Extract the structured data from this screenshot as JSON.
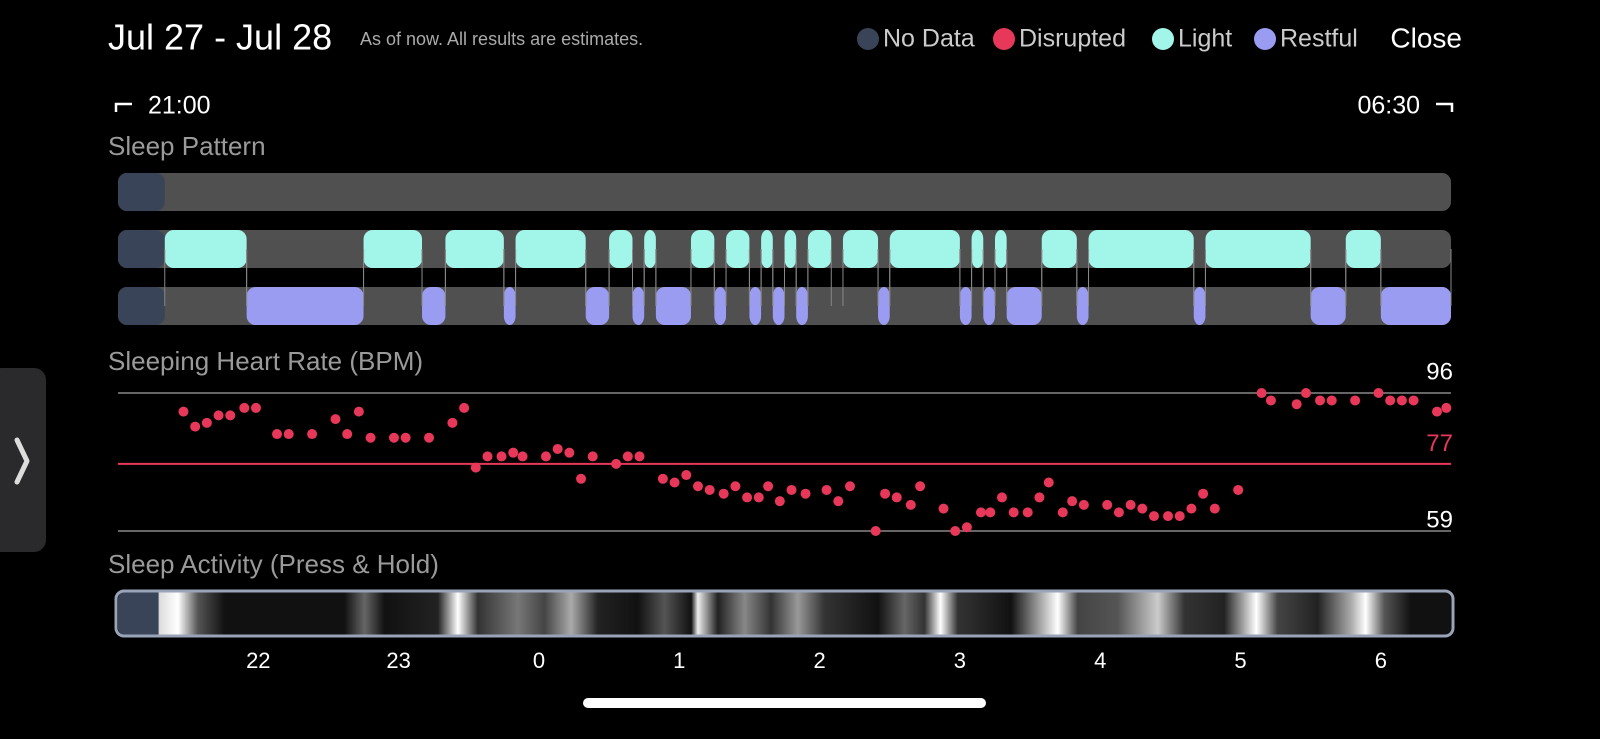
{
  "header": {
    "title": "Jul 27 - Jul 28",
    "subtitle": "As of now. All results are estimates.",
    "close": "Close"
  },
  "legend": [
    {
      "name": "No Data",
      "color": "#3a4458",
      "segments": [
        [
          0,
          20
        ]
      ]
    },
    {
      "name": "Disrupted",
      "color": "#e8385a",
      "segments": []
    },
    {
      "name": "Light",
      "color": "#a2f5e9",
      "segments": [
        [
          20,
          55
        ],
        [
          105,
          130
        ],
        [
          140,
          165
        ],
        [
          170,
          200
        ],
        [
          210,
          220
        ],
        [
          225,
          230
        ],
        [
          245,
          255
        ],
        [
          260,
          270
        ],
        [
          275,
          280
        ],
        [
          285,
          290
        ],
        [
          295,
          305
        ],
        [
          310,
          325
        ],
        [
          330,
          360
        ],
        [
          365,
          370
        ],
        [
          375,
          380
        ],
        [
          395,
          410
        ],
        [
          415,
          460
        ],
        [
          465,
          510
        ],
        [
          525,
          540
        ]
      ]
    },
    {
      "name": "Restful",
      "color": "#9a9cf2",
      "segments": [
        [
          55,
          105
        ],
        [
          130,
          140
        ],
        [
          165,
          170
        ],
        [
          200,
          210
        ],
        [
          220,
          225
        ],
        [
          230,
          245
        ],
        [
          255,
          260
        ],
        [
          270,
          275
        ],
        [
          280,
          285
        ],
        [
          290,
          295
        ],
        [
          325,
          330
        ],
        [
          360,
          365
        ],
        [
          370,
          375
        ],
        [
          380,
          395
        ],
        [
          410,
          415
        ],
        [
          460,
          465
        ],
        [
          510,
          525
        ],
        [
          540,
          570
        ]
      ]
    }
  ],
  "timeline": {
    "start": "21:00",
    "end": "06:30",
    "xlim": [
      0,
      570
    ],
    "ticks": [
      {
        "value": 60,
        "label": "22"
      },
      {
        "value": 120,
        "label": "23"
      },
      {
        "value": 180,
        "label": "0"
      },
      {
        "value": 240,
        "label": "1"
      },
      {
        "value": 300,
        "label": "2"
      },
      {
        "value": 360,
        "label": "3"
      },
      {
        "value": 420,
        "label": "4"
      },
      {
        "value": 480,
        "label": "5"
      },
      {
        "value": 540,
        "label": "6"
      }
    ]
  },
  "sleep_pattern": {
    "title": "Sleep Pattern"
  },
  "heart_rate": {
    "type": "scatter",
    "title": "Sleeping Heart Rate (BPM)",
    "color": "#e8385a",
    "ylim": [
      59,
      96
    ],
    "yticks": [
      96,
      77,
      59
    ],
    "x": [
      28,
      33,
      38,
      43,
      48,
      54,
      59,
      68,
      73,
      83,
      93,
      98,
      103,
      108,
      118,
      123,
      133,
      143,
      148,
      153,
      158,
      164,
      169,
      173,
      183,
      188,
      193,
      198,
      203,
      213,
      218,
      223,
      233,
      238,
      243,
      248,
      253,
      259,
      264,
      269,
      274,
      278,
      283,
      288,
      294,
      303,
      308,
      313,
      324,
      328,
      333,
      339,
      343,
      353,
      358,
      363,
      369,
      373,
      378,
      383,
      389,
      394,
      398,
      404,
      408,
      413,
      423,
      428,
      433,
      438,
      443,
      449,
      454,
      459,
      464,
      469,
      479,
      489,
      493,
      504,
      508,
      514,
      519,
      529,
      539,
      544,
      549,
      554,
      564,
      568
    ],
    "values": [
      91,
      87,
      88,
      90,
      90,
      92,
      92,
      85,
      85,
      85,
      89,
      85,
      91,
      84,
      84,
      84,
      84,
      88,
      92,
      76,
      79,
      79,
      80,
      79,
      79,
      81,
      80,
      73,
      79,
      77,
      79,
      79,
      73,
      72,
      74,
      71,
      70,
      69,
      71,
      68,
      68,
      71,
      67,
      70,
      69,
      70,
      67,
      71,
      59,
      69,
      68,
      66,
      71,
      65,
      59,
      60,
      64,
      64,
      68,
      64,
      64,
      68,
      72,
      64,
      67,
      66,
      66,
      64,
      66,
      65,
      63,
      63,
      63,
      65,
      69,
      65,
      70,
      96,
      94,
      93,
      96,
      94,
      94,
      94,
      96,
      94,
      94,
      94,
      91,
      92
    ]
  },
  "activity": {
    "title": "Sleep Activity (Press & Hold)"
  }
}
